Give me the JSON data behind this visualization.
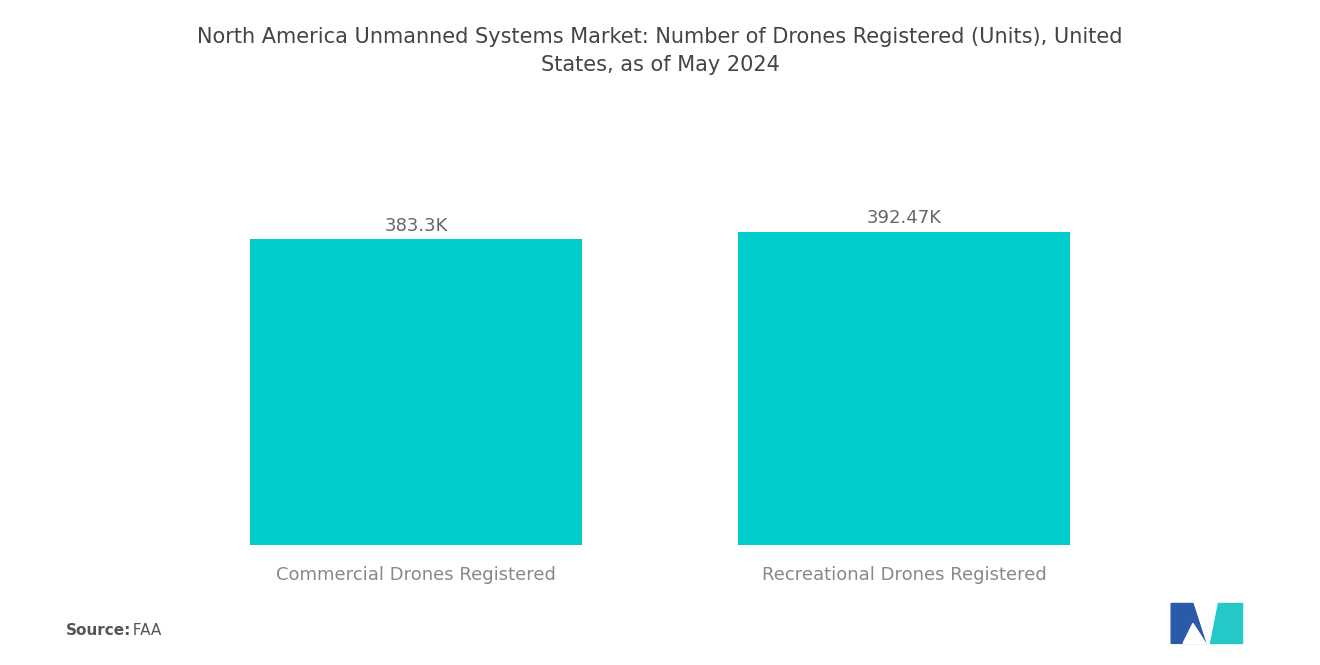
{
  "title": "North America Unmanned Systems Market: Number of Drones Registered (Units), United\nStates, as of May 2024",
  "categories": [
    "Commercial Drones Registered",
    "Recreational Drones Registered"
  ],
  "values": [
    383300,
    392470
  ],
  "labels": [
    "383.3K",
    "392.47K"
  ],
  "bar_color": "#00CCCC",
  "background_color": "#ffffff",
  "title_fontsize": 15,
  "label_fontsize": 13,
  "category_fontsize": 13,
  "source_bold": "Source:",
  "source_normal": "  FAA",
  "source_fontsize": 11,
  "ylim": [
    0,
    500000
  ],
  "x_positions": [
    0.28,
    0.72
  ],
  "bar_width": 0.3,
  "xlim": [
    0,
    1
  ]
}
